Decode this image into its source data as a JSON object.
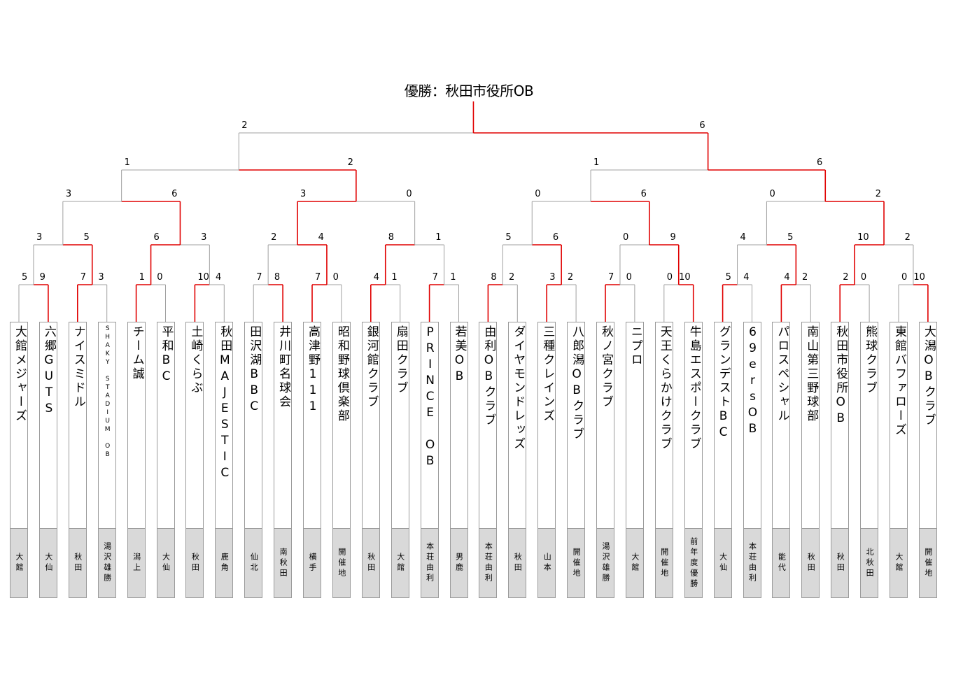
{
  "champion": "優勝：秋田市役所OB",
  "colors": {
    "winner_line": "#e00000",
    "loser_line": "#a0a0a0",
    "region_bg": "#d9d9d9"
  },
  "teams": [
    {
      "name": "大館メジャーズ",
      "region": "大館"
    },
    {
      "name": "六郷GUTS",
      "region": "大仙"
    },
    {
      "name": "ナイスミドル",
      "region": "秋田"
    },
    {
      "name": "SHAKY STADIUM OB",
      "region": "湯沢雄勝"
    },
    {
      "name": "チーム誠",
      "region": "潟上"
    },
    {
      "name": "平和BC",
      "region": "大仙"
    },
    {
      "name": "土崎くらぶ",
      "region": "秋田"
    },
    {
      "name": "秋田MAJESTIC",
      "region": "鹿角"
    },
    {
      "name": "田沢湖BBC",
      "region": "仙北"
    },
    {
      "name": "井川町名球会",
      "region": "南秋田"
    },
    {
      "name": "高津野111",
      "region": "横手"
    },
    {
      "name": "昭和野球倶楽部",
      "region": "開催地"
    },
    {
      "name": "銀河館クラブ",
      "region": "秋田"
    },
    {
      "name": "扇田クラブ",
      "region": "大館"
    },
    {
      "name": "PRINCE OB",
      "region": "本荘由利"
    },
    {
      "name": "若美OB",
      "region": "男鹿"
    },
    {
      "name": "由利OBクラブ",
      "region": "本荘由利"
    },
    {
      "name": "ダイヤモンドレッズ",
      "region": "秋田"
    },
    {
      "name": "三種クレインズ",
      "region": "山本"
    },
    {
      "name": "八郎潟OBクラブ",
      "region": "開催地"
    },
    {
      "name": "秋ノ宮クラブ",
      "region": "湯沢雄勝"
    },
    {
      "name": "ニプロ",
      "region": "大館"
    },
    {
      "name": "天王くらかけクラブ",
      "region": "開催地"
    },
    {
      "name": "牛島エスポークラブ",
      "region": "前年度優勝"
    },
    {
      "name": "グランデストBC",
      "region": "大仙"
    },
    {
      "name": "69ersOB",
      "region": "本荘由利"
    },
    {
      "name": "パロスペシャル",
      "region": "能代"
    },
    {
      "name": "南山第三野球部",
      "region": "秋田"
    },
    {
      "name": "秋田市役所OB",
      "region": "秋田"
    },
    {
      "name": "熊球クラブ",
      "region": "北秋田"
    },
    {
      "name": "東館バファローズ",
      "region": "大館"
    },
    {
      "name": "大潟OBクラブ",
      "region": "開催地"
    }
  ],
  "rounds": [
    [
      [
        5,
        9
      ],
      [
        7,
        3
      ],
      [
        1,
        0
      ],
      [
        10,
        4
      ],
      [
        7,
        8
      ],
      [
        7,
        0
      ],
      [
        4,
        1
      ],
      [
        7,
        1
      ],
      [
        8,
        2
      ],
      [
        3,
        2
      ],
      [
        7,
        0
      ],
      [
        0,
        10
      ],
      [
        5,
        4
      ],
      [
        4,
        2
      ],
      [
        2,
        0
      ],
      [
        0,
        10
      ]
    ],
    [
      [
        3,
        5
      ],
      [
        6,
        3
      ],
      [
        2,
        4
      ],
      [
        8,
        1
      ],
      [
        5,
        6
      ],
      [
        0,
        9
      ],
      [
        4,
        5
      ],
      [
        10,
        2
      ]
    ],
    [
      [
        3,
        6
      ],
      [
        3,
        0
      ],
      [
        0,
        6
      ],
      [
        0,
        2
      ]
    ],
    [
      [
        1,
        2
      ],
      [
        1,
        6
      ]
    ],
    [
      [
        2,
        6
      ]
    ]
  ]
}
